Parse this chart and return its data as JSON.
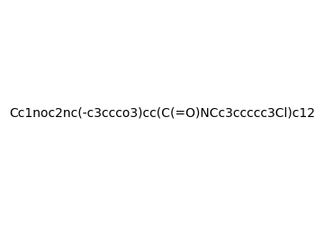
{
  "smiles": "Cc1noc2nc(-c3ccco3)cc(C(=O)NCc3ccccc3Cl)c12",
  "image_size": 300,
  "background_color": "#e8e8e8",
  "title": ""
}
